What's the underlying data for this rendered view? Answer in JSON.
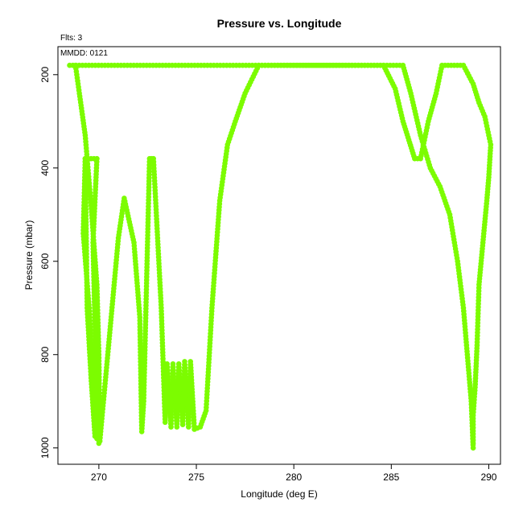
{
  "chart_data": {
    "type": "scatter",
    "title": "Pressure vs. Longitude",
    "xlabel": "Longitude (deg E)",
    "ylabel": "Pressure (mbar)",
    "annotations": {
      "flights": "Flts: 3",
      "date": "MMDD: 0121"
    },
    "xlim": [
      267.9,
      290.6
    ],
    "ylim": [
      1035,
      140
    ],
    "y_inverted": true,
    "grid": false,
    "legend": "none",
    "color": "#7CFC00",
    "x_ticks": [
      270,
      275,
      280,
      285,
      290
    ],
    "y_ticks": [
      200,
      400,
      600,
      800,
      1000
    ],
    "x_tick_labels": [
      "270",
      "275",
      "280",
      "285",
      "290"
    ],
    "y_tick_labels": [
      "200",
      "400",
      "600",
      "800",
      "1000"
    ],
    "series": [
      {
        "points": [
          [
            268.5,
            180
          ],
          [
            285.6,
            180
          ],
          [
            286.0,
            240
          ],
          [
            286.5,
            330
          ],
          [
            287.0,
            400
          ],
          [
            287.5,
            440
          ],
          [
            288.0,
            500
          ],
          [
            288.4,
            600
          ],
          [
            288.7,
            700
          ],
          [
            288.9,
            800
          ],
          [
            289.1,
            900
          ],
          [
            289.2,
            1000
          ]
        ]
      },
      {
        "points": [
          [
            268.8,
            180
          ],
          [
            269.0,
            240
          ],
          [
            269.3,
            330
          ],
          [
            269.6,
            480
          ],
          [
            269.9,
            650
          ],
          [
            270.0,
            800
          ],
          [
            270.05,
            985
          ]
        ]
      },
      {
        "points": [
          [
            270.05,
            985
          ],
          [
            270.5,
            780
          ],
          [
            271.0,
            550
          ],
          [
            271.3,
            465
          ],
          [
            271.8,
            560
          ],
          [
            272.1,
            720
          ],
          [
            272.2,
            965
          ],
          [
            272.3,
            900
          ],
          [
            272.6,
            380
          ],
          [
            272.8,
            380
          ],
          [
            273.2,
            700
          ],
          [
            273.4,
            945
          ],
          [
            273.5,
            820
          ],
          [
            273.7,
            955
          ],
          [
            273.8,
            820
          ],
          [
            274.0,
            955
          ],
          [
            274.1,
            820
          ],
          [
            274.3,
            950
          ],
          [
            274.4,
            815
          ],
          [
            274.6,
            955
          ],
          [
            274.7,
            815
          ],
          [
            274.9,
            960
          ],
          [
            275.2,
            955
          ],
          [
            275.5,
            920
          ],
          [
            275.8,
            700
          ],
          [
            276.2,
            470
          ],
          [
            276.6,
            350
          ],
          [
            277.0,
            300
          ],
          [
            277.5,
            240
          ],
          [
            278.2,
            180
          ],
          [
            283.0,
            180
          ],
          [
            284.6,
            180
          ],
          [
            285.2,
            230
          ],
          [
            285.6,
            300
          ],
          [
            285.9,
            340
          ],
          [
            286.2,
            380
          ],
          [
            286.5,
            380
          ],
          [
            286.9,
            300
          ],
          [
            287.3,
            240
          ],
          [
            287.6,
            180
          ],
          [
            288.7,
            180
          ],
          [
            289.2,
            220
          ],
          [
            289.5,
            260
          ],
          [
            289.8,
            290
          ],
          [
            290.1,
            350
          ],
          [
            290.0,
            420
          ],
          [
            289.9,
            470
          ],
          [
            289.7,
            560
          ],
          [
            289.5,
            650
          ],
          [
            289.4,
            780
          ],
          [
            289.3,
            870
          ],
          [
            289.2,
            930
          ],
          [
            289.2,
            990
          ]
        ]
      },
      {
        "points": [
          [
            269.3,
            380
          ],
          [
            269.4,
            700
          ],
          [
            269.6,
            850
          ],
          [
            269.8,
            975
          ],
          [
            269.9,
            980
          ],
          [
            269.5,
            700
          ],
          [
            269.2,
            540
          ],
          [
            269.3,
            380
          ],
          [
            269.9,
            380
          ],
          [
            269.7,
            560
          ],
          [
            269.8,
            740
          ],
          [
            270.0,
            990
          ]
        ]
      }
    ]
  }
}
